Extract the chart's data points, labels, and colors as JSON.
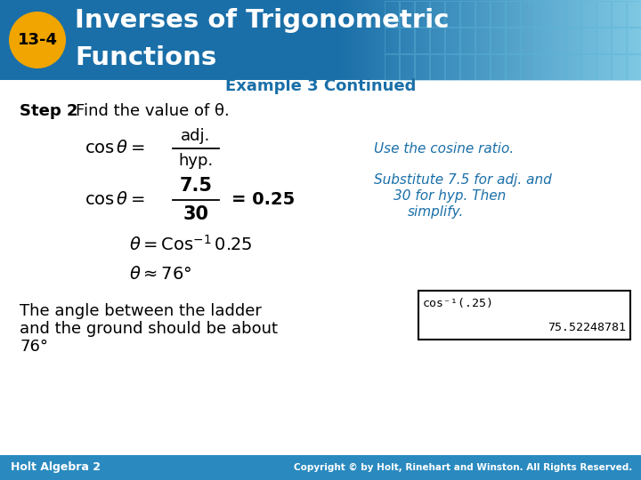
{
  "title_line1": "Inverses of Trigonometric",
  "title_line2": "Functions",
  "lesson_num": "13-4",
  "header_bg_color": "#1a6fa8",
  "header_text_color": "#ffffff",
  "badge_color": "#f0a500",
  "badge_text_color": "#000000",
  "example_title": "Example 3 Continued",
  "example_title_color": "#1a6fa8",
  "step_color": "#000000",
  "note_color": "#1a6fa8",
  "footer_bg": "#2a8abf",
  "bg_color": "#ffffff",
  "grid_color": "#a8d4ea",
  "footer_text_left": "Holt Algebra 2",
  "footer_text_right": "Copyright © by Holt, Rinehart and Winston. All Rights Reserved."
}
